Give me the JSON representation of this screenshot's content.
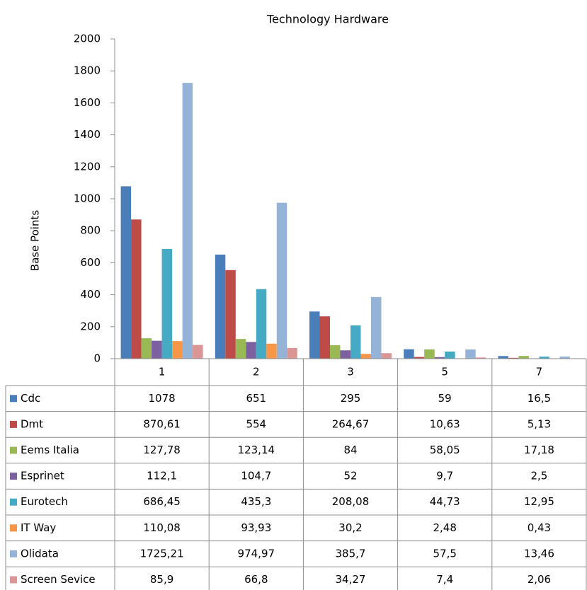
{
  "chart_data": {
    "type": "bar",
    "title": "Technology Hardware",
    "ylabel": "Base Points",
    "categories": [
      "1",
      "2",
      "3",
      "5",
      "7"
    ],
    "ylim": [
      0,
      2000
    ],
    "yticks": [
      0,
      200,
      400,
      600,
      800,
      1000,
      1200,
      1400,
      1600,
      1800,
      2000
    ],
    "grid": false,
    "series": [
      {
        "name": "Cdc",
        "color": "#4a7ebb",
        "values": [
          1078,
          651,
          295,
          59,
          16.5
        ],
        "value_labels": [
          "1078",
          "651",
          "295",
          "59",
          "16,5"
        ]
      },
      {
        "name": "Dmt",
        "color": "#be4b48",
        "values": [
          870.61,
          554,
          264.67,
          10.63,
          5.13
        ],
        "value_labels": [
          "870,61",
          "554",
          "264,67",
          "10,63",
          "5,13"
        ]
      },
      {
        "name": "Eems Italia",
        "color": "#98b954",
        "values": [
          127.78,
          123.14,
          84,
          58.05,
          17.18
        ],
        "value_labels": [
          "127,78",
          "123,14",
          "84",
          "58,05",
          "17,18"
        ]
      },
      {
        "name": "Esprinet",
        "color": "#7d60a0",
        "values": [
          112.1,
          104.7,
          52,
          9.7,
          2.5
        ],
        "value_labels": [
          "112,1",
          "104,7",
          "52",
          "9,7",
          "2,5"
        ]
      },
      {
        "name": "Eurotech",
        "color": "#46aac5",
        "values": [
          686.45,
          435.3,
          208.08,
          44.73,
          12.95
        ],
        "value_labels": [
          "686,45",
          "435,3",
          "208,08",
          "44,73",
          "12,95"
        ]
      },
      {
        "name": "IT Way",
        "color": "#f79646",
        "values": [
          110.08,
          93.93,
          30.2,
          2.48,
          0.43
        ],
        "value_labels": [
          "110,08",
          "93,93",
          "30,2",
          "2,48",
          "0,43"
        ]
      },
      {
        "name": "Olidata",
        "color": "#95b3d7",
        "values": [
          1725.21,
          974.97,
          385.7,
          57.5,
          13.46
        ],
        "value_labels": [
          "1725,21",
          "974,97",
          "385,7",
          "57,5",
          "13,46"
        ]
      },
      {
        "name": "Screen Sevice",
        "color": "#d99694",
        "values": [
          85.9,
          66.8,
          34.27,
          7.4,
          2.06
        ],
        "value_labels": [
          "85,9",
          "66,8",
          "34,27",
          "7,4",
          "2,06"
        ]
      }
    ]
  }
}
